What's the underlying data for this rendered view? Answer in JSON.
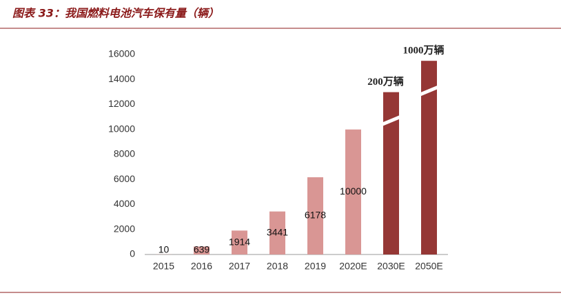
{
  "header": {
    "title": "图表 33：我国燃料电池汽车保有量（辆）"
  },
  "chart_data": {
    "type": "bar",
    "categories": [
      "2015",
      "2016",
      "2017",
      "2018",
      "2019",
      "2020E",
      "2030E",
      "2050E"
    ],
    "values": [
      10,
      639,
      1914,
      3441,
      6178,
      10000,
      2000000,
      10000000
    ],
    "value_labels": [
      "10",
      "639",
      "1914",
      "3441",
      "6178",
      "10000",
      "200万辆",
      "1000万辆"
    ],
    "colors": [
      "#d99694",
      "#d99694",
      "#d99694",
      "#d99694",
      "#d99694",
      "#d99694",
      "#953735",
      "#953735"
    ],
    "ylim": [
      0,
      16000
    ],
    "yticks": [
      0,
      2000,
      4000,
      6000,
      8000,
      10000,
      12000,
      14000,
      16000
    ],
    "axis_break": true,
    "grid": false
  }
}
